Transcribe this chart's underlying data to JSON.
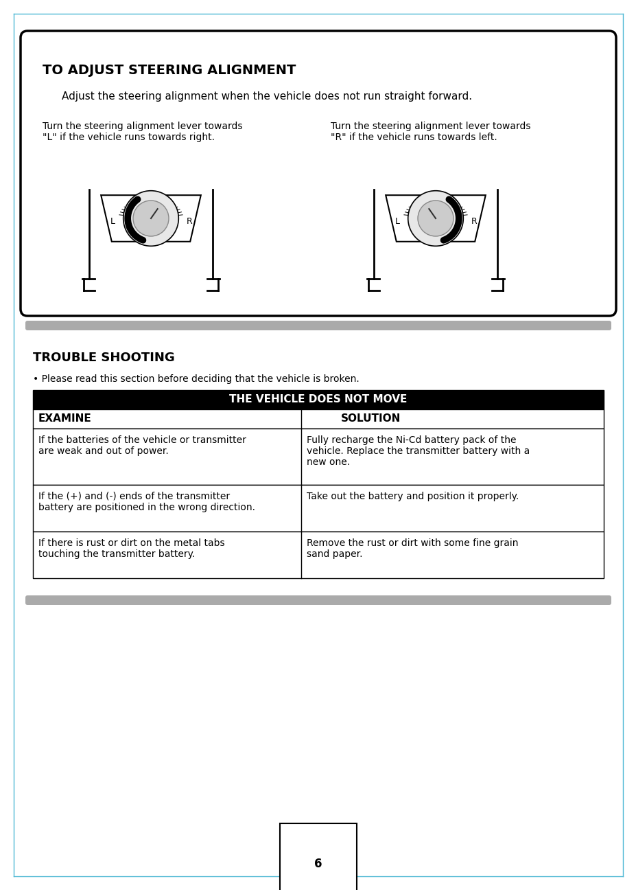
{
  "bg_color": "#ffffff",
  "border_color": "#4db8d4",
  "title_box": {
    "title": "TO ADJUST STEERING ALIGNMENT",
    "subtitle": "Adjust the steering alignment when the vehicle does not run straight forward.",
    "left_caption": "Turn the steering alignment lever towards\n\"L\" if the vehicle runs towards right.",
    "right_caption": "Turn the steering alignment lever towards\n\"R\" if the vehicle runs towards left."
  },
  "trouble_section": {
    "title": "TROUBLE SHOOTING",
    "subtitle": "• Please read this section before deciding that the vehicle is broken.",
    "table_header": "THE VEHICLE DOES NOT MOVE",
    "col1_header": "EXAMINE",
    "col2_header": "SOLUTION",
    "rows": [
      {
        "examine": "If the batteries of the vehicle or transmitter\nare weak and out of power.",
        "solution": "Fully recharge the Ni-Cd battery pack of the\nvehicle. Replace the transmitter battery with a\nnew one."
      },
      {
        "examine": "If the (+) and (-) ends of the transmitter\nbattery are positioned in the wrong direction.",
        "solution": "Take out the battery and position it properly."
      },
      {
        "examine": "If there is rust or dirt on the metal tabs\ntouching the transmitter battery.",
        "solution": "Remove the rust or dirt with some fine grain\nsand paper."
      }
    ]
  },
  "page_number": "6",
  "divider_color": "#aaaaaa"
}
